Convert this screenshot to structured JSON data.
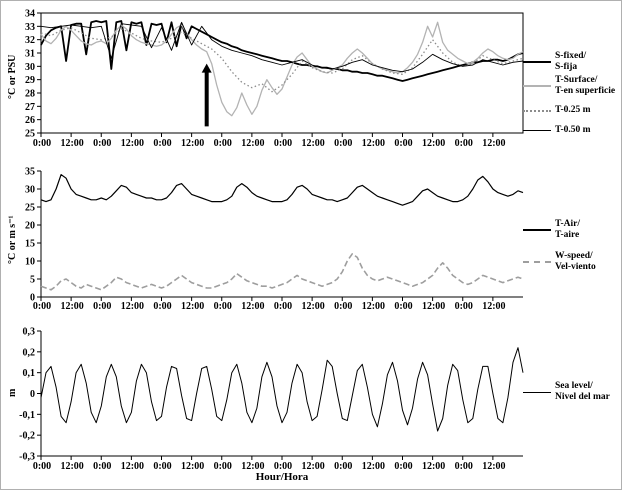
{
  "figure": {
    "xlabel": "Hour/Hora"
  },
  "x_axis": {
    "min": 0,
    "max": 192,
    "tick_hours": [
      0,
      12,
      24,
      36,
      48,
      60,
      72,
      84,
      96,
      108,
      120,
      132,
      144,
      156,
      168,
      180
    ],
    "tick_labels": [
      "0:00",
      "12:00",
      "0:00",
      "12:00",
      "0:00",
      "12:00",
      "0:00",
      "12:00",
      "0:00",
      "12:00",
      "0:00",
      "12:00",
      "0:00",
      "12:00",
      "0:00",
      "12:00"
    ]
  },
  "chart_data": [
    {
      "type": "line",
      "ylabel": "°C or PSU",
      "ylim": [
        25,
        34
      ],
      "ytick_values": [
        25,
        26,
        27,
        28,
        29,
        30,
        31,
        32,
        33,
        34
      ],
      "ytick_labels": [
        "25",
        "26",
        "27",
        "28",
        "29",
        "30",
        "31",
        "32",
        "33",
        "34"
      ],
      "x_step_hours": 2,
      "grid": false,
      "series": [
        {
          "name": "S-fixed/S-fija",
          "style": "solid",
          "color": "#000000",
          "width": 1.8,
          "values": [
            31.6,
            32.3,
            32.7,
            32.9,
            33.0,
            30.4,
            33.1,
            33.2,
            33.2,
            30.9,
            33.3,
            33.4,
            33.3,
            33.4,
            29.8,
            33.3,
            33.4,
            31.2,
            33.3,
            33.2,
            33.3,
            31.6,
            33.2,
            33.1,
            33.2,
            31.8,
            33.3,
            31.5,
            33.2,
            32.1,
            33.0,
            32.8,
            32.6,
            32.4,
            32.2,
            32.0,
            31.8,
            31.7,
            31.5,
            31.4,
            31.2,
            31.1,
            31.0,
            30.9,
            30.8,
            30.7,
            30.6,
            30.5,
            30.4,
            30.4,
            30.3,
            30.2,
            30.1,
            30.1,
            30.0,
            30.0,
            29.9,
            29.9,
            29.8,
            29.8,
            29.7,
            29.7,
            29.6,
            29.6,
            29.5,
            29.5,
            29.4,
            29.3,
            29.3,
            29.2,
            29.1,
            29.0,
            28.9,
            29.0,
            29.1,
            29.2,
            29.3,
            29.4,
            29.5,
            29.6,
            29.7,
            29.8,
            29.9,
            30.0,
            30.1,
            30.2,
            30.3,
            30.3,
            30.4,
            30.4,
            30.5,
            30.5,
            30.4,
            30.5,
            30.7,
            30.9,
            31.0
          ]
        },
        {
          "name": "T-Surface/T-en superficie",
          "style": "solid",
          "color": "#b3b3b3",
          "width": 1.3,
          "values": [
            32.4,
            31.9,
            31.7,
            32.1,
            32.7,
            33.0,
            32.7,
            32.3,
            31.9,
            31.7,
            31.6,
            31.8,
            31.9,
            31.7,
            32.1,
            32.7,
            33.1,
            32.8,
            32.3,
            32.0,
            31.8,
            31.7,
            31.6,
            31.5,
            31.6,
            31.9,
            32.4,
            32.9,
            33.1,
            32.5,
            32.0,
            31.6,
            31.3,
            31.1,
            30.2,
            28.6,
            27.3,
            26.6,
            26.3,
            26.9,
            28.0,
            27.1,
            26.4,
            27.0,
            28.2,
            29.0,
            28.4,
            27.9,
            28.3,
            29.2,
            30.1,
            30.7,
            31.0,
            30.5,
            30.0,
            29.8,
            29.6,
            29.5,
            29.7,
            29.9,
            30.1,
            30.6,
            31.0,
            31.3,
            31.0,
            30.6,
            30.2,
            30.0,
            29.8,
            29.7,
            29.6,
            29.5,
            29.6,
            29.9,
            30.3,
            30.9,
            31.8,
            33.0,
            32.2,
            33.3,
            31.8,
            31.2,
            30.9,
            30.6,
            30.4,
            30.2,
            30.3,
            30.6,
            31.0,
            31.3,
            31.1,
            30.8,
            30.6,
            30.5,
            30.6,
            30.9,
            31.1
          ]
        },
        {
          "name": "T-0.25 m",
          "style": "dotted",
          "color": "#8c8c8c",
          "width": 1.3,
          "x_step_hours": 4,
          "values": [
            32.5,
            32.3,
            32.7,
            32.9,
            32.5,
            32.1,
            32.0,
            32.2,
            32.8,
            32.5,
            32.1,
            31.9,
            31.8,
            32.1,
            32.6,
            32.1,
            31.7,
            31.3,
            30.6,
            29.6,
            28.8,
            28.4,
            28.7,
            28.1,
            28.6,
            29.4,
            30.4,
            29.9,
            29.6,
            29.5,
            29.8,
            30.5,
            30.8,
            30.2,
            29.8,
            29.5,
            29.4,
            29.9,
            30.9,
            32.0,
            31.0,
            30.3,
            30.0,
            30.2,
            30.8,
            30.5,
            30.2,
            30.4,
            30.6
          ]
        },
        {
          "name": "T-0.50 m",
          "style": "solid",
          "color": "#000000",
          "width": 0.9,
          "x_step_hours": 4,
          "values": [
            33.0,
            32.9,
            33.0,
            33.1,
            33.0,
            32.9,
            33.0,
            30.6,
            33.2,
            33.1,
            33.0,
            31.4,
            32.9,
            31.2,
            33.3,
            31.6,
            33.0,
            32.0,
            31.5,
            31.2,
            31.0,
            30.8,
            30.5,
            30.3,
            30.1,
            30.3,
            30.5,
            30.1,
            29.9,
            29.8,
            30.0,
            30.3,
            30.5,
            30.1,
            29.9,
            29.7,
            29.6,
            29.8,
            30.3,
            30.9,
            30.5,
            30.2,
            30.0,
            30.1,
            30.5,
            30.3,
            30.1,
            30.3,
            30.4
          ]
        }
      ],
      "annotation": {
        "type": "up-arrow",
        "x_hour": 66,
        "y_base": 25.5,
        "y_tip": 30.2
      }
    },
    {
      "type": "line",
      "ylabel": "°C or m s⁻¹",
      "ylim": [
        0,
        35
      ],
      "ytick_values": [
        0,
        5,
        10,
        15,
        20,
        25,
        30,
        35
      ],
      "ytick_labels": [
        "0",
        "5",
        "10",
        "15",
        "20",
        "25",
        "30",
        "35"
      ],
      "x_step_hours": 2,
      "grid": false,
      "series": [
        {
          "name": "T-Air/T-aire",
          "style": "solid",
          "color": "#000000",
          "width": 1.2,
          "values": [
            27,
            26.5,
            27,
            30,
            34,
            33,
            30,
            28.5,
            28,
            27.5,
            27,
            27,
            27.5,
            27,
            28,
            29.5,
            31,
            30.5,
            29,
            28.5,
            28,
            27.5,
            27.5,
            27,
            27,
            27.5,
            29,
            31,
            31.5,
            30,
            28.5,
            28,
            27.5,
            27,
            26.5,
            26.5,
            26.5,
            27,
            28,
            30.5,
            31.5,
            30.5,
            29,
            28,
            27.5,
            27,
            26.5,
            26.5,
            26.5,
            27,
            28.5,
            30.5,
            31,
            30,
            28.5,
            28,
            27.5,
            27,
            27,
            26.5,
            27,
            27.5,
            29,
            30.5,
            31,
            30,
            29,
            28,
            27.5,
            27,
            26.5,
            26,
            25.5,
            26,
            26.5,
            28,
            29.5,
            30,
            29,
            28,
            27.5,
            27,
            26.5,
            26.5,
            27,
            28,
            30,
            32.5,
            33.5,
            32,
            30,
            29,
            28.5,
            28,
            28.5,
            29.5,
            29
          ]
        },
        {
          "name": "W-speed/Vel-viento",
          "style": "dashed",
          "color": "#9e9e9e",
          "width": 1.6,
          "values": [
            3,
            2.5,
            2,
            3,
            4.5,
            5,
            4,
            3,
            2.5,
            3.5,
            3,
            2.5,
            2,
            3,
            4,
            5.5,
            5,
            4,
            3.5,
            3,
            2.5,
            3,
            3.5,
            3,
            2.5,
            3,
            4,
            5,
            6,
            5,
            4,
            3.5,
            3,
            2.5,
            2.5,
            3,
            3.5,
            4,
            5,
            6.5,
            5.5,
            4.5,
            4,
            3.5,
            3,
            3,
            2.5,
            3,
            3.5,
            4,
            5,
            6,
            5,
            4.5,
            4,
            3.5,
            3,
            3.5,
            4,
            5,
            7,
            10,
            12,
            11,
            8,
            6,
            5,
            4.5,
            5,
            5.5,
            5,
            4.5,
            4,
            3.5,
            3,
            3.5,
            4,
            5,
            6,
            8,
            9.5,
            8,
            6,
            5,
            4,
            3.5,
            4,
            5,
            6,
            5.5,
            5,
            4.5,
            4,
            4.5,
            5,
            5.5,
            5
          ]
        }
      ]
    },
    {
      "type": "line",
      "ylabel": "m",
      "ylim": [
        -0.3,
        0.3
      ],
      "ytick_values": [
        -0.3,
        -0.2,
        -0.1,
        0,
        0.1,
        0.2,
        0.3
      ],
      "ytick_labels": [
        "-0,3",
        "-0,2",
        "-0,1",
        "0",
        "0,1",
        "0,2",
        "0,3"
      ],
      "x_step_hours": 2,
      "grid": false,
      "series": [
        {
          "name": "Sea level/Nivel del mar",
          "style": "solid",
          "color": "#000000",
          "width": 1.0,
          "values": [
            -0.02,
            0.1,
            0.13,
            0.03,
            -0.11,
            -0.14,
            -0.04,
            0.1,
            0.14,
            0.05,
            -0.09,
            -0.14,
            -0.06,
            0.08,
            0.14,
            0.08,
            -0.06,
            -0.14,
            -0.09,
            0.06,
            0.14,
            0.1,
            -0.04,
            -0.13,
            -0.11,
            0.03,
            0.13,
            0.12,
            -0.01,
            -0.12,
            -0.13,
            0.0,
            0.12,
            0.13,
            0.02,
            -0.11,
            -0.13,
            -0.03,
            0.1,
            0.14,
            0.05,
            -0.09,
            -0.14,
            -0.07,
            0.08,
            0.15,
            0.08,
            -0.06,
            -0.14,
            -0.09,
            0.05,
            0.14,
            0.1,
            -0.04,
            -0.13,
            -0.11,
            0.02,
            0.16,
            0.13,
            0.0,
            -0.12,
            -0.13,
            -0.01,
            0.11,
            0.14,
            0.03,
            -0.1,
            -0.16,
            -0.05,
            0.09,
            0.15,
            0.06,
            -0.08,
            -0.15,
            -0.07,
            0.07,
            0.15,
            0.09,
            -0.05,
            -0.18,
            -0.12,
            0.04,
            0.14,
            0.11,
            -0.03,
            -0.14,
            -0.12,
            0.02,
            0.13,
            0.13,
            0.0,
            -0.12,
            -0.14,
            -0.02,
            0.15,
            0.22,
            0.1
          ]
        }
      ]
    }
  ],
  "legend": {
    "panel1": [
      {
        "line1": "S-fixed/",
        "line2": "S-fija"
      },
      {
        "line1": "T-Surface/",
        "line2": "T-en superficie"
      },
      {
        "line1": "T-0.25 m",
        "line2": ""
      },
      {
        "line1": "T-0.50 m",
        "line2": ""
      }
    ],
    "panel2": [
      {
        "line1": "T-Air/",
        "line2": "T-aire"
      },
      {
        "line1": "W-speed/",
        "line2": "Vel-viento"
      }
    ],
    "panel3": [
      {
        "line1": "Sea level/",
        "line2": "Nivel del mar"
      }
    ]
  }
}
